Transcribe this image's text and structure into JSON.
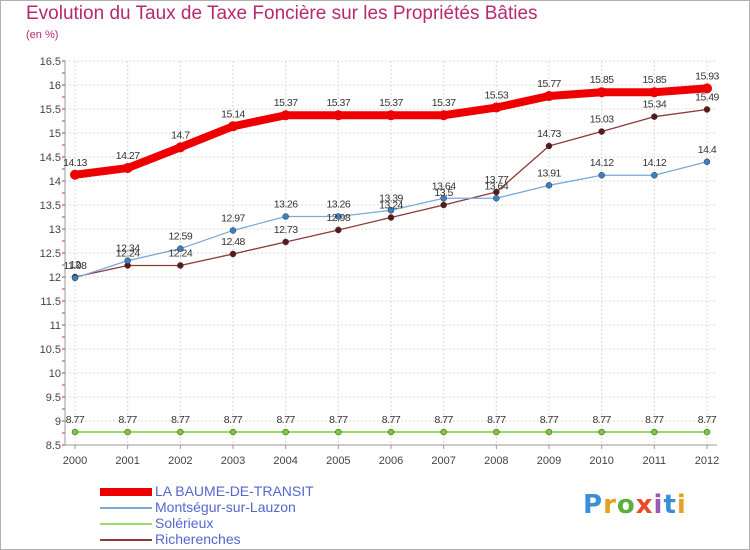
{
  "title": "Evolution du Taux de Taxe Foncière sur les Propriétés Bâties",
  "unit": "(en %)",
  "logo": {
    "text": "Proxiti",
    "colors": [
      "#3b8fd6",
      "#e8a020",
      "#5cb03a",
      "#e84a2a",
      "#9b59b6",
      "#3b8fd6",
      "#e8a020"
    ]
  },
  "chart_data": {
    "type": "line",
    "title": "Evolution du Taux de Taxe Foncière sur les Propriétés Bâties",
    "ylabel": "(en %)",
    "xlabel": "",
    "grid": true,
    "ylim": [
      8.5,
      16.5
    ],
    "yticks": [
      8.5,
      9,
      9.5,
      10,
      10.5,
      11,
      11.5,
      12,
      12.5,
      13,
      13.5,
      14,
      14.5,
      15,
      15.5,
      16,
      16.5
    ],
    "ytick_labels": [
      "8.5",
      "9",
      "9.5",
      "10",
      "10.5",
      "11",
      "11.5",
      "12",
      "12.5",
      "13",
      "13.5",
      "14",
      "14.5",
      "15",
      "15.5",
      "16",
      "16.5"
    ],
    "categories": [
      "2000",
      "2001",
      "2002",
      "2003",
      "2004",
      "2005",
      "2006",
      "2007",
      "2008",
      "2009",
      "2010",
      "2011",
      "2012"
    ],
    "series": [
      {
        "name": "LA BAUME-DE-TRANSIT",
        "color": "#ee0000",
        "marker": "#ee0000",
        "width": 8,
        "values": [
          14.13,
          14.27,
          14.7,
          15.14,
          15.37,
          15.37,
          15.37,
          15.37,
          15.53,
          15.77,
          15.85,
          15.85,
          15.93
        ],
        "labels": [
          "14.13",
          "14.27",
          "14.7",
          "15.14",
          "15.37",
          "15.37",
          "15.37",
          "15.37",
          "15.53",
          "15.77",
          "15.85",
          "15.85",
          "15.93"
        ]
      },
      {
        "name": "Montségur-sur-Lauzon",
        "color": "#7aaad8",
        "marker": "#3a7fc4",
        "width": 1.3,
        "values": [
          11.98,
          12.34,
          12.59,
          12.97,
          13.26,
          13.26,
          13.39,
          13.64,
          13.64,
          13.91,
          14.12,
          14.12,
          14.4
        ],
        "labels": [
          "11.98",
          "12.34",
          "12.59",
          "12.97",
          "13.26",
          "13.26",
          "13.39",
          "13.64",
          "13.64",
          "13.91",
          "14.12",
          "14.12",
          "14.4"
        ]
      },
      {
        "name": "Solérieux",
        "color": "#99dd66",
        "marker": "#77cc33",
        "width": 2,
        "values": [
          8.77,
          8.77,
          8.77,
          8.77,
          8.77,
          8.77,
          8.77,
          8.77,
          8.77,
          8.77,
          8.77,
          8.77,
          8.77
        ],
        "labels": [
          "8.77",
          "8.77",
          "8.77",
          "8.77",
          "8.77",
          "8.77",
          "8.77",
          "8.77",
          "8.77",
          "8.77",
          "8.77",
          "8.77",
          "8.77"
        ]
      },
      {
        "name": "Richerenches",
        "color": "#8b3a3a",
        "marker": "#5a1818",
        "width": 1.3,
        "values": [
          12.0,
          12.24,
          12.24,
          12.48,
          12.73,
          12.98,
          13.24,
          13.5,
          13.77,
          14.73,
          15.03,
          15.34,
          15.49
        ],
        "labels": [
          "12",
          "12.24",
          "12.24",
          "12.48",
          "12.73",
          "12.98",
          "13.24",
          "13.5",
          "13.77",
          "14.73",
          "15.03",
          "15.34",
          "15.49"
        ]
      }
    ]
  }
}
